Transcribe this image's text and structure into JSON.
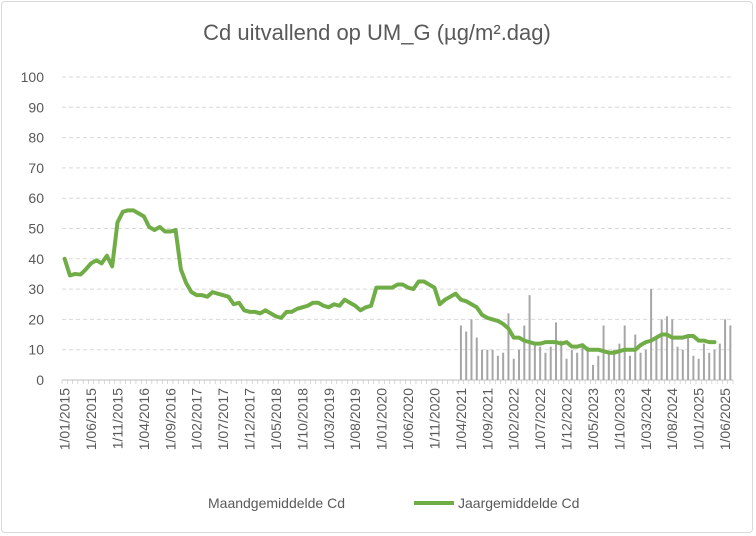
{
  "chart_data": {
    "type": "bar+line",
    "title": "Cd uitvallend op UM_G (µg/m².dag)",
    "ylim": [
      0,
      100
    ],
    "y_ticks": [
      0,
      10,
      20,
      30,
      40,
      50,
      60,
      70,
      80,
      90,
      100
    ],
    "x_tick_labels": [
      "1/01/2015",
      "1/06/2015",
      "1/11/2015",
      "1/04/2016",
      "1/09/2016",
      "1/02/2017",
      "1/07/2017",
      "1/12/2017",
      "1/05/2018",
      "1/10/2018",
      "1/03/2019",
      "1/08/2019",
      "1/01/2020",
      "1/06/2020",
      "1/11/2020",
      "1/04/2021",
      "1/09/2021",
      "1/02/2022",
      "1/07/2022",
      "1/12/2022",
      "1/05/2023",
      "1/10/2023",
      "1/03/2024",
      "1/08/2024",
      "1/01/2025",
      "1/06/2025"
    ],
    "grid": true,
    "legend_position": "bottom",
    "colors": {
      "line": "#70ad47",
      "bars": "#a6a6a6",
      "grid": "#d9d9d9",
      "text": "#595959"
    },
    "series": [
      {
        "name": "Maandgemiddelde Cd",
        "type": "bar",
        "start": "2015-01",
        "values": [
          0,
          0,
          0,
          0,
          0,
          0,
          0,
          0,
          0,
          0,
          0,
          0,
          0,
          0,
          0,
          0,
          0,
          0,
          0,
          0,
          0,
          0,
          0,
          0,
          0,
          0,
          0,
          0,
          0,
          0,
          0,
          0,
          0,
          0,
          0,
          0,
          0,
          0,
          0,
          0,
          0,
          0,
          0,
          0,
          0,
          0,
          0,
          0,
          0,
          0,
          0,
          0,
          0,
          0,
          0,
          0,
          0,
          0,
          0,
          0,
          0,
          0,
          0,
          0,
          0,
          0,
          0,
          0,
          0,
          0,
          0,
          0,
          0,
          0,
          0,
          18,
          16,
          20,
          14,
          10,
          10,
          10,
          8,
          9,
          22,
          7,
          10,
          18,
          28,
          12,
          11,
          9,
          11,
          19,
          13,
          7,
          10,
          9,
          12,
          11,
          5,
          8,
          18,
          9,
          10,
          12,
          18,
          8,
          15,
          9,
          10,
          30,
          14,
          20,
          21,
          20,
          11,
          10,
          15,
          8,
          7,
          12,
          9,
          10,
          12,
          20,
          18
        ]
      },
      {
        "name": "Jaargemiddelde Cd",
        "type": "line",
        "start": "2015-01",
        "values": [
          40,
          34.5,
          35,
          34.8,
          36.5,
          38.5,
          39.5,
          38.5,
          41,
          37.5,
          52,
          55.5,
          56,
          56,
          55,
          54,
          50.5,
          49.5,
          50.5,
          49,
          49,
          49.5,
          36.5,
          32,
          29,
          28,
          28,
          27.5,
          29,
          28.5,
          28,
          27.5,
          25,
          25.5,
          23,
          22.5,
          22.5,
          22,
          23,
          22,
          21,
          20.5,
          22.5,
          22.5,
          23.5,
          24,
          24.5,
          25.5,
          25.5,
          24.5,
          24,
          25,
          24.5,
          26.5,
          25.5,
          24.5,
          23,
          24,
          24.5,
          30.5,
          30.5,
          30.5,
          30.5,
          31.5,
          31.5,
          30.5,
          30,
          32.5,
          32.5,
          31.5,
          30.5,
          25,
          26.5,
          27.5,
          28.5,
          26.5,
          26,
          25,
          24,
          21.5,
          20.5,
          20,
          19.5,
          18.5,
          17,
          14,
          14,
          13,
          12.5,
          12,
          12,
          12.5,
          12.5,
          12.5,
          12,
          12.5,
          11,
          11,
          11.5,
          10,
          10,
          10,
          9.5,
          9,
          9,
          9.5,
          10,
          10,
          10,
          11.5,
          12.5,
          13,
          14,
          15,
          15,
          14,
          14,
          14,
          14.5,
          14.5,
          13,
          13,
          12.5,
          12.5
        ]
      }
    ]
  }
}
